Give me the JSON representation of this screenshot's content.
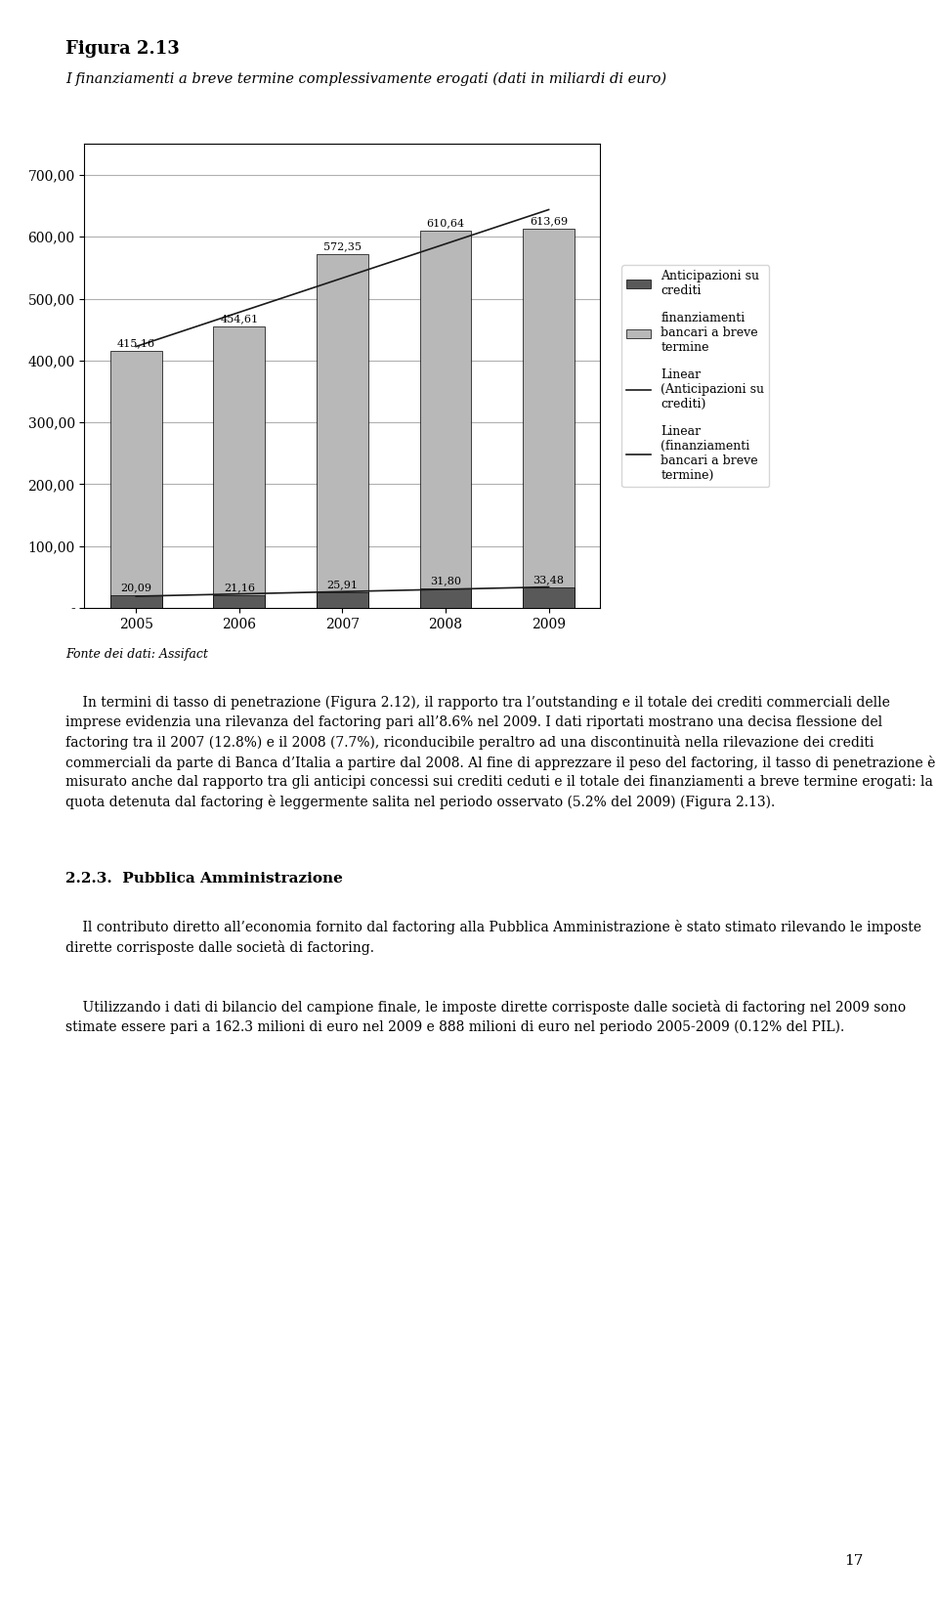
{
  "chart_data": {
    "type": "bar",
    "title": "Figura 2.13",
    "subtitle": "I finanziamenti a breve termine complessivamente erogati (dati in miliardi di euro)",
    "categories": [
      "2005",
      "2006",
      "2007",
      "2008",
      "2009"
    ],
    "series": [
      {
        "name": "Anticipazioni su\ncrediti",
        "type": "bar",
        "color": "#595959",
        "values": [
          20.09,
          21.16,
          25.91,
          31.8,
          33.48
        ],
        "value_labels": [
          "20,09",
          "21,16",
          "25,91",
          "31,80",
          "33,48"
        ]
      },
      {
        "name": "finanziamenti\nbancari a breve\ntermine",
        "type": "bar",
        "color": "#b8b8b8",
        "values": [
          415.16,
          454.61,
          572.35,
          610.64,
          613.69
        ],
        "value_labels": [
          "415,16",
          "454,61",
          "572,35",
          "610,64",
          "613,69"
        ]
      },
      {
        "name": "Linear\n(Anticipazioni su\ncrediti)",
        "type": "line",
        "color": "#1a1a1a",
        "values": [
          19.004,
          22.746,
          26.488,
          30.23,
          33.972
        ]
      },
      {
        "name": "Linear\n(finanziamenti\nbancari a breve\ntermine)",
        "type": "line",
        "color": "#1a1a1a",
        "values": [
          422.672,
          477.981,
          533.29,
          588.599,
          643.908
        ]
      }
    ],
    "ylim": [
      0,
      750
    ],
    "yticks": [
      {
        "value": 0,
        "label": "-"
      },
      {
        "value": 100,
        "label": "100,00"
      },
      {
        "value": 200,
        "label": "200,00"
      },
      {
        "value": 300,
        "label": "300,00"
      },
      {
        "value": 400,
        "label": "400,00"
      },
      {
        "value": 500,
        "label": "500,00"
      },
      {
        "value": 600,
        "label": "600,00"
      },
      {
        "value": 700,
        "label": "700,00"
      }
    ],
    "grid": true,
    "legend": "right",
    "data_labels": true,
    "annotations": [
      "Fonte dei dati: Assifact",
      "    In termini di tasso di penetrazione (Figura 2.12), il rapporto tra l’outstanding e il totale dei crediti commerciali delle imprese evidenzia una rilevanza del factoring pari all’8.6% nel 2009. I dati riportati mostrano una decisa flessione del factoring tra il 2007 (12.8%) e il 2008 (7.7%), riconducibile peraltro ad una discontinuità nella rilevazione dei crediti commerciali da parte di Banca d’Italia a partire dal 2008. Al fine di apprezzare il peso del factoring, il tasso di penetrazione è misurato anche dal rapporto tra gli anticipi concessi sui crediti ceduti e il totale dei finanziamenti a breve termine erogati: la quota detenuta dal factoring è leggermente salita nel periodo osservato (5.2% del 2009) (Figura 2.13).",
      "2.2.3.  Pubblica Amministrazione",
      "    Il contributo diretto all’economia fornito dal factoring alla Pubblica Amministrazione è stato stimato rilevando le imposte dirette corrisposte dalle società di factoring.",
      "    Utilizzando i dati di bilancio del campione finale, le imposte dirette corrisposte dalle società di factoring nel 2009 sono stimate essere pari a 162.3 milioni di euro nel 2009 e 888 milioni di euro nel periodo 2005-2009 (0.12% del PIL).",
      "17"
    ]
  }
}
